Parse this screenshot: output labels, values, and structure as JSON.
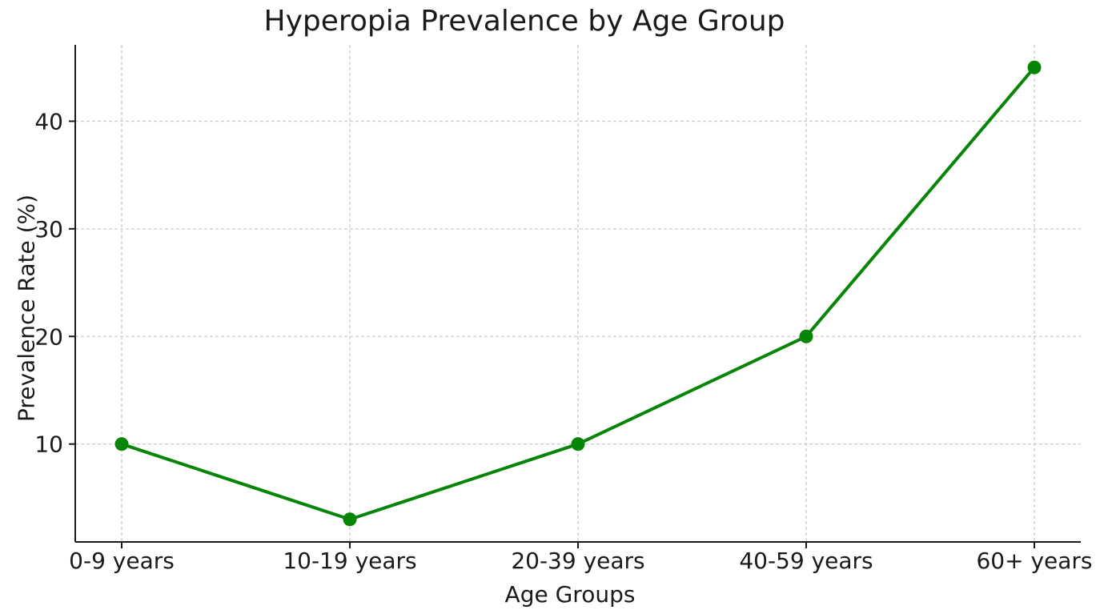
{
  "chart_data": {
    "type": "line",
    "title": "Hyperopia Prevalence by Age Group",
    "xlabel": "Age Groups",
    "ylabel": "Prevalence Rate (%)",
    "categories": [
      "0-9 years",
      "10-19 years",
      "20-39 years",
      "40-59 years",
      "60+ years"
    ],
    "values": [
      10,
      3,
      10,
      20,
      45
    ],
    "yticks": [
      10,
      20,
      30,
      40
    ],
    "ylim": [
      0.9,
      47.1
    ],
    "grid": "dashed-both-axes",
    "legend": "none",
    "colors": {
      "line": "#068506",
      "marker": "#068506",
      "grid": "#cccccc",
      "text": "#1a1a1a",
      "spine": "#1a1a1a",
      "background": "#ffffff"
    }
  }
}
